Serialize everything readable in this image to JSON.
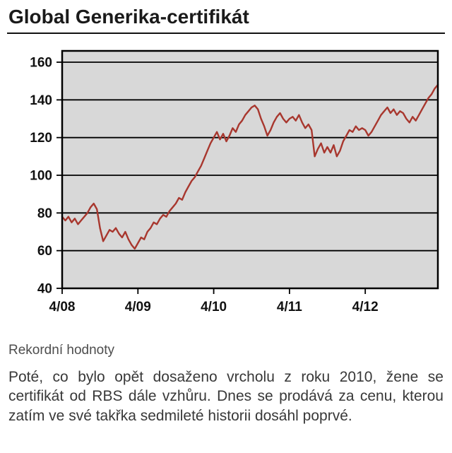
{
  "page": {
    "title": "Global Generika-certifikát",
    "caption": "Rekordní hodnoty",
    "body": "Poté, co bylo opět dosaženo vrcholu z roku 2010, žene se certifikát od RBS dále vzhůru. Dnes se prodává za cenu, kterou zatím ve své takřka sedmileté historii dosáhl poprvé."
  },
  "chart_data": {
    "type": "line",
    "title": "Global Generika-certifikát",
    "xlabel": "",
    "ylabel": "",
    "ylim": [
      40,
      160
    ],
    "y_ticks": [
      40,
      60,
      80,
      100,
      120,
      140,
      160
    ],
    "x_tick_labels": [
      "4/08",
      "4/09",
      "4/10",
      "4/11",
      "4/12"
    ],
    "x_tick_indices": [
      0,
      24,
      48,
      72,
      96
    ],
    "grid": true,
    "legend": "none",
    "plot_bg": "#d8d8d8",
    "line_color": "#a8372e",
    "axis_color": "#000000",
    "series": [
      {
        "name": "Global Generika-certifikát",
        "values": [
          78,
          76,
          78,
          75,
          77,
          74,
          76,
          78,
          80,
          83,
          85,
          82,
          72,
          65,
          68,
          71,
          70,
          72,
          69,
          67,
          70,
          66,
          63,
          61,
          64,
          67,
          66,
          70,
          72,
          75,
          74,
          77,
          79,
          78,
          81,
          83,
          85,
          88,
          87,
          91,
          94,
          97,
          99,
          102,
          105,
          109,
          113,
          117,
          120,
          123,
          119,
          122,
          118,
          121,
          125,
          123,
          127,
          129,
          132,
          134,
          136,
          137,
          135,
          130,
          126,
          121,
          124,
          128,
          131,
          133,
          130,
          128,
          130,
          131,
          129,
          132,
          128,
          125,
          127,
          124,
          110,
          114,
          117,
          112,
          115,
          112,
          116,
          110,
          113,
          118,
          121,
          124,
          123,
          126,
          124,
          125,
          124,
          121,
          123,
          126,
          129,
          132,
          134,
          136,
          133,
          135,
          132,
          134,
          133,
          130,
          128,
          131,
          129,
          132,
          135,
          138,
          141,
          143,
          146,
          148
        ]
      }
    ]
  }
}
